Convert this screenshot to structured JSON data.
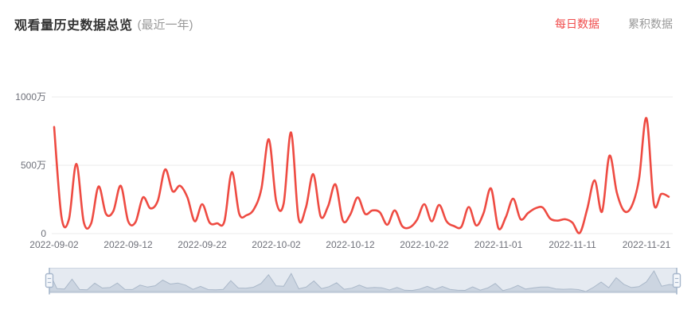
{
  "header": {
    "title": "观看量历史数据总览",
    "subtitle": "(最近一年)",
    "tabs": [
      {
        "label": "每日数据",
        "active": true
      },
      {
        "label": "累积数据",
        "active": false
      }
    ]
  },
  "colors": {
    "line": "#ee4b42",
    "tab_active": "#f04b4b",
    "tab_inactive": "#999999",
    "title": "#333333",
    "subtitle": "#999999",
    "axis_label": "#6e7079",
    "gridline": "#ebebeb",
    "slider_track": "#e5eaf1",
    "slider_border": "#ccd5e0",
    "slider_area": "#ccd5e1",
    "slider_line": "#aab8c9",
    "slider_handle_border": "#a7b7cc",
    "slider_handle_fill": "#f4f7fb"
  },
  "chart_data": {
    "type": "line",
    "title": "观看量历史数据总览 (最近一年)",
    "unit": "万",
    "smooth": true,
    "grid": true,
    "legend_position": "none",
    "ylim": [
      0,
      1000
    ],
    "y_ticks": [
      {
        "value": 0,
        "label": "0"
      },
      {
        "value": 500,
        "label": "500万"
      },
      {
        "value": 1000,
        "label": "1000万"
      }
    ],
    "x_tick_labels": [
      "2022-09-02",
      "2022-09-12",
      "2022-09-22",
      "2022-10-02",
      "2022-10-12",
      "2022-10-22",
      "2022-11-01",
      "2022-11-11",
      "2022-11-21"
    ],
    "x": [
      "2022-09-02",
      "2022-09-03",
      "2022-09-04",
      "2022-09-05",
      "2022-09-06",
      "2022-09-07",
      "2022-09-08",
      "2022-09-09",
      "2022-09-10",
      "2022-09-11",
      "2022-09-12",
      "2022-09-13",
      "2022-09-14",
      "2022-09-15",
      "2022-09-16",
      "2022-09-17",
      "2022-09-18",
      "2022-09-19",
      "2022-09-20",
      "2022-09-21",
      "2022-09-22",
      "2022-09-23",
      "2022-09-24",
      "2022-09-25",
      "2022-09-26",
      "2022-09-27",
      "2022-09-28",
      "2022-09-29",
      "2022-09-30",
      "2022-10-01",
      "2022-10-02",
      "2022-10-03",
      "2022-10-04",
      "2022-10-05",
      "2022-10-06",
      "2022-10-07",
      "2022-10-08",
      "2022-10-09",
      "2022-10-10",
      "2022-10-11",
      "2022-10-12",
      "2022-10-13",
      "2022-10-14",
      "2022-10-15",
      "2022-10-16",
      "2022-10-17",
      "2022-10-18",
      "2022-10-19",
      "2022-10-20",
      "2022-10-21",
      "2022-10-22",
      "2022-10-23",
      "2022-10-24",
      "2022-10-25",
      "2022-10-26",
      "2022-10-27",
      "2022-10-28",
      "2022-10-29",
      "2022-10-30",
      "2022-10-31",
      "2022-11-01",
      "2022-11-02",
      "2022-11-03",
      "2022-11-04",
      "2022-11-05",
      "2022-11-06",
      "2022-11-07",
      "2022-11-08",
      "2022-11-09",
      "2022-11-10",
      "2022-11-11",
      "2022-11-12",
      "2022-11-13",
      "2022-11-14",
      "2022-11-15",
      "2022-11-16",
      "2022-11-17",
      "2022-11-18",
      "2022-11-19",
      "2022-11-20",
      "2022-11-21",
      "2022-11-22",
      "2022-11-23",
      "2022-11-24"
    ],
    "values": [
      780,
      120,
      105,
      510,
      85,
      75,
      345,
      145,
      165,
      350,
      90,
      85,
      265,
      185,
      240,
      470,
      310,
      350,
      265,
      90,
      215,
      80,
      75,
      90,
      450,
      145,
      135,
      180,
      330,
      690,
      235,
      220,
      740,
      115,
      190,
      435,
      125,
      200,
      360,
      95,
      140,
      265,
      145,
      170,
      155,
      65,
      170,
      55,
      45,
      100,
      215,
      90,
      210,
      90,
      55,
      50,
      195,
      60,
      150,
      330,
      40,
      120,
      255,
      105,
      150,
      185,
      190,
      110,
      95,
      105,
      80,
      5,
      180,
      390,
      160,
      570,
      300,
      165,
      200,
      400,
      845,
      220,
      290,
      270
    ],
    "datazoom": {
      "type": "slider",
      "position": "bottom",
      "selected_range": "full"
    }
  }
}
